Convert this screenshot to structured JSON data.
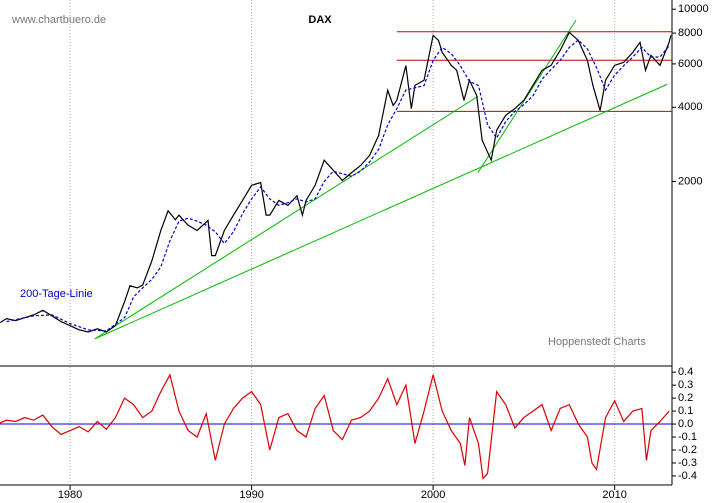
{
  "chart_data": [
    {
      "type": "line",
      "title": "DAX",
      "log_scale": true,
      "grid": "x",
      "xlim": [
        1976.14,
        2013.16
      ],
      "xticks": [
        1980,
        1990,
        2000,
        2010
      ],
      "ylim": [
        360,
        10900
      ],
      "yticks": [
        2000,
        4000,
        6000,
        8000,
        10000
      ],
      "annotations": [
        "www.chartbuero.de",
        "Hoppenstedt Charts"
      ],
      "series": [
        {
          "color": "#000000",
          "x": [
            1976.15,
            1976.5,
            1977,
            1977.5,
            1978,
            1978.5,
            1979,
            1979.5,
            1980,
            1980.5,
            1981,
            1981.5,
            1982,
            1982.5,
            1983,
            1983.3,
            1983.7,
            1984,
            1984.5,
            1985,
            1985.4,
            1985.8,
            1986,
            1986.5,
            1987,
            1987.6,
            1987.8,
            1988,
            1988.5,
            1989,
            1989.5,
            1990,
            1990.5,
            1990.8,
            1991,
            1991.5,
            1992,
            1992.5,
            1992.8,
            1993,
            1993.5,
            1994,
            1994.5,
            1995,
            1995.5,
            1996,
            1996.5,
            1997,
            1997.5,
            1997.8,
            1998,
            1998.5,
            1998.8,
            1999,
            1999.5,
            2000,
            2000.3,
            2000.5,
            2001,
            2001.3,
            2001.7,
            2002,
            2002.4,
            2002.7,
            2003.2,
            2003.5,
            2004,
            2004.5,
            2005,
            2005.5,
            2006,
            2006.5,
            2007,
            2007.5,
            2008,
            2008.5,
            2008.8,
            2009.2,
            2009.5,
            2010,
            2010.5,
            2011,
            2011.4,
            2011.7,
            2012,
            2012.5,
            2013,
            2013.1
          ],
          "values": [
            535,
            555,
            545,
            560,
            575,
            600,
            570,
            540,
            520,
            500,
            490,
            505,
            490,
            520,
            650,
            755,
            740,
            760,
            950,
            1265,
            1520,
            1400,
            1460,
            1330,
            1265,
            1390,
            1000,
            1000,
            1265,
            1460,
            1675,
            1930,
            1980,
            1460,
            1460,
            1675,
            1600,
            1750,
            1460,
            1675,
            1930,
            2440,
            2220,
            2020,
            2170,
            2320,
            2550,
            3080,
            4690,
            4070,
            4270,
            5900,
            3950,
            4910,
            5150,
            7830,
            7470,
            6680,
            5920,
            5650,
            4270,
            5150,
            4470,
            2940,
            2440,
            3230,
            3710,
            3950,
            4270,
            4910,
            5650,
            5920,
            6810,
            8060,
            7470,
            6200,
            4910,
            3880,
            5150,
            5920,
            6090,
            6680,
            7340,
            5650,
            6500,
            5920,
            7340,
            7830
          ]
        },
        {
          "name": "200-Tage-Linie",
          "color": "#0000cc",
          "dashed": true,
          "x": [
            1976.5,
            1977,
            1978,
            1979,
            1980,
            1981,
            1982,
            1983,
            1983.5,
            1984,
            1984.5,
            1985,
            1985.5,
            1986,
            1986.5,
            1987,
            1987.5,
            1988,
            1988.5,
            1989,
            1989.5,
            1990,
            1990.5,
            1991,
            1991.5,
            1992,
            1992.5,
            1993,
            1993.5,
            1994,
            1994.5,
            1995,
            1995.5,
            1996,
            1996.5,
            1997,
            1997.5,
            1998,
            1998.5,
            1999,
            1999.5,
            2000,
            2000.5,
            2001,
            2001.5,
            2002,
            2002.5,
            2003,
            2003.5,
            2004,
            2004.5,
            2005,
            2005.5,
            2006,
            2006.5,
            2007,
            2007.5,
            2008,
            2008.5,
            2009,
            2009.5,
            2010,
            2010.5,
            2011,
            2011.5,
            2012,
            2012.5,
            2013
          ],
          "values": [
            540,
            550,
            570,
            575,
            530,
            500,
            495,
            560,
            680,
            740,
            800,
            900,
            1150,
            1380,
            1420,
            1380,
            1330,
            1250,
            1120,
            1250,
            1480,
            1700,
            1900,
            1700,
            1600,
            1640,
            1700,
            1650,
            1700,
            2000,
            2200,
            2150,
            2100,
            2200,
            2400,
            2700,
            3400,
            3950,
            4700,
            4800,
            4900,
            6200,
            7000,
            6600,
            5900,
            5100,
            4900,
            3400,
            3000,
            3500,
            3850,
            4100,
            4450,
            5200,
            5700,
            6200,
            7000,
            7500,
            6900,
            5800,
            4700,
            5400,
            5900,
            6400,
            7000,
            6400,
            6400,
            7100
          ]
        }
      ],
      "hlines": [
        {
          "value": 8100,
          "xlim": [
            1998,
            2013.16
          ],
          "color": "#cc0000"
        },
        {
          "value": 6210,
          "xlim": [
            1998,
            2013.16
          ],
          "color": "#cc0000"
        },
        {
          "value": 3850,
          "xlim": [
            1998,
            2013.16
          ],
          "color": "#cc0000"
        }
      ],
      "trendlines": [
        {
          "x": [
            1981.37,
            2002.47
          ],
          "values": [
            460,
            4430
          ],
          "color": "#00bb00"
        },
        {
          "x": [
            1981.37,
            2012.89
          ],
          "values": [
            460,
            4955
          ],
          "color": "#00bb00"
        },
        {
          "x": [
            2002.47,
            2007.87
          ],
          "values": [
            2173,
            9020
          ],
          "color": "#00bb00"
        }
      ]
    },
    {
      "type": "line",
      "log_scale": false,
      "grid": "x",
      "xlim": [
        1976.14,
        2013.16
      ],
      "xticks": [
        1980,
        1990,
        2000,
        2010
      ],
      "ylim": [
        -0.47,
        0.44
      ],
      "yticks": [
        0.4,
        0.3,
        0.2,
        0.1,
        {
          "value": 0,
          "label": "0.0"
        },
        -0.1,
        -0.2,
        -0.3,
        -0.4
      ],
      "series": [
        {
          "color": "#dd0000",
          "x": [
            1976,
            1976.5,
            1977,
            1977.5,
            1978,
            1978.5,
            1979,
            1979.5,
            1980,
            1980.5,
            1981,
            1981.5,
            1982,
            1982.5,
            1983,
            1983.5,
            1984,
            1984.5,
            1985,
            1985.5,
            1986,
            1986.5,
            1987,
            1987.5,
            1988,
            1988.5,
            1989,
            1989.5,
            1990,
            1990.5,
            1991,
            1991.5,
            1992,
            1992.5,
            1993,
            1993.5,
            1994,
            1994.5,
            1995,
            1995.5,
            1996,
            1996.5,
            1997,
            1997.5,
            1998,
            1998.5,
            1999,
            1999.5,
            2000,
            2000.5,
            2001,
            2001.5,
            2001.75,
            2002,
            2002.5,
            2002.75,
            2003,
            2003.5,
            2004,
            2004.5,
            2005,
            2005.5,
            2006,
            2006.5,
            2007,
            2007.5,
            2008,
            2008.5,
            2008.75,
            2009,
            2009.5,
            2010,
            2010.5,
            2011,
            2011.5,
            2011.75,
            2012,
            2012.5,
            2013
          ],
          "values": [
            0.0,
            0.03,
            0.02,
            0.05,
            0.03,
            0.07,
            -0.02,
            -0.08,
            -0.05,
            -0.02,
            -0.06,
            0.02,
            -0.04,
            0.05,
            0.2,
            0.15,
            0.05,
            0.1,
            0.25,
            0.38,
            0.1,
            -0.05,
            -0.1,
            0.08,
            -0.28,
            0.0,
            0.12,
            0.2,
            0.25,
            0.15,
            -0.2,
            0.05,
            0.08,
            -0.05,
            -0.1,
            0.12,
            0.22,
            -0.05,
            -0.12,
            0.03,
            0.05,
            0.1,
            0.2,
            0.35,
            0.15,
            0.3,
            -0.15,
            0.1,
            0.38,
            0.1,
            -0.05,
            -0.15,
            -0.32,
            0.05,
            -0.15,
            -0.42,
            -0.38,
            0.25,
            0.15,
            -0.03,
            0.05,
            0.1,
            0.15,
            -0.05,
            0.12,
            0.15,
            0.0,
            -0.1,
            -0.3,
            -0.35,
            0.05,
            0.18,
            0.02,
            0.1,
            0.12,
            -0.28,
            -0.05,
            0.02,
            0.1
          ]
        }
      ],
      "hlines": [
        {
          "value": 0,
          "xlim": [
            1976.14,
            2013.16
          ],
          "color": "#0000cc"
        }
      ]
    }
  ]
}
